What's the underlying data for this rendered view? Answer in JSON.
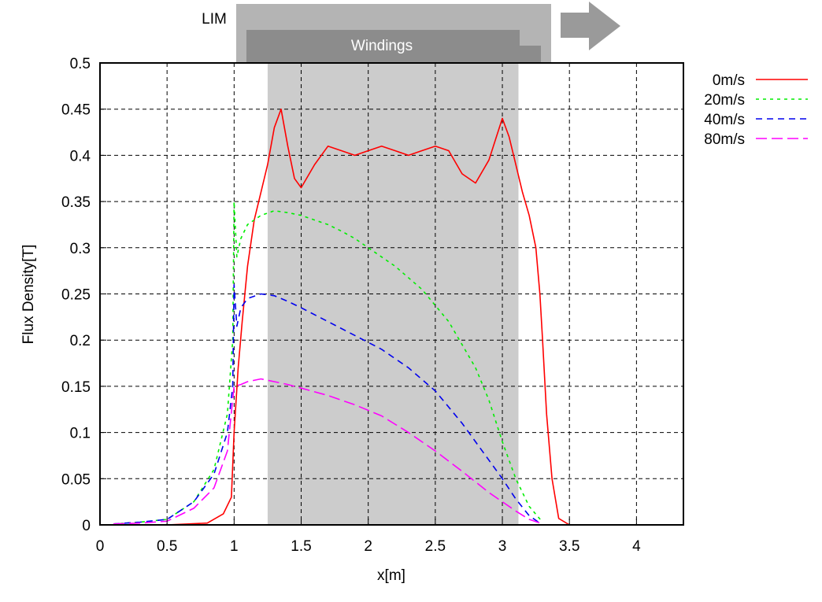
{
  "chart_data": {
    "type": "line",
    "title": "",
    "xlabel": "x[m]",
    "ylabel": "Flux Density[T]",
    "xlim": [
      0,
      4.35
    ],
    "ylim": [
      0,
      0.5
    ],
    "x_ticks": [
      "0",
      "0.5",
      "1",
      "1.5",
      "2",
      "2.5",
      "3",
      "3.5",
      "4"
    ],
    "y_ticks": [
      "0",
      "0.05",
      "0.1",
      "0.15",
      "0.2",
      "0.25",
      "0.3",
      "0.35",
      "0.4",
      "0.45",
      "0.5"
    ],
    "grid": true,
    "legend_position": "top-right outside",
    "shaded_region": {
      "x_start": 1.25,
      "x_end": 3.12,
      "color": "#cccccc"
    },
    "diagram": {
      "lim_label": "LIM",
      "windings_label": "Windings",
      "lim_color": "#b4b4b4",
      "windings_color": "#8c8c8c",
      "arrow_color": "#9a9a9a"
    },
    "series": [
      {
        "name": "0m/s",
        "color": "#ff0000",
        "dash": "solid",
        "x": [
          0.1,
          0.5,
          0.8,
          0.92,
          0.98,
          1.0,
          1.03,
          1.06,
          1.1,
          1.15,
          1.2,
          1.25,
          1.3,
          1.35,
          1.4,
          1.45,
          1.5,
          1.6,
          1.7,
          1.8,
          1.9,
          2.0,
          2.1,
          2.2,
          2.3,
          2.4,
          2.5,
          2.6,
          2.7,
          2.8,
          2.9,
          3.0,
          3.05,
          3.1,
          3.15,
          3.2,
          3.25,
          3.28,
          3.3,
          3.33,
          3.37,
          3.42,
          3.5
        ],
        "y": [
          0.0,
          0.0,
          0.002,
          0.012,
          0.03,
          0.1,
          0.17,
          0.22,
          0.28,
          0.33,
          0.36,
          0.39,
          0.43,
          0.45,
          0.41,
          0.375,
          0.365,
          0.39,
          0.41,
          0.405,
          0.4,
          0.405,
          0.41,
          0.405,
          0.4,
          0.405,
          0.41,
          0.405,
          0.38,
          0.37,
          0.395,
          0.44,
          0.42,
          0.39,
          0.36,
          0.335,
          0.3,
          0.25,
          0.2,
          0.12,
          0.05,
          0.007,
          0.0
        ]
      },
      {
        "name": "20m/s",
        "color": "#00ee00",
        "dash": "4,5",
        "x": [
          0.1,
          0.3,
          0.5,
          0.7,
          0.85,
          0.95,
          0.99,
          1.0,
          1.02,
          1.05,
          1.1,
          1.2,
          1.3,
          1.4,
          1.5,
          1.6,
          1.7,
          1.8,
          1.9,
          2.0,
          2.2,
          2.4,
          2.6,
          2.8,
          2.9,
          3.0,
          3.1,
          3.2,
          3.3
        ],
        "y": [
          0.001,
          0.003,
          0.006,
          0.025,
          0.06,
          0.12,
          0.2,
          0.35,
          0.29,
          0.31,
          0.325,
          0.335,
          0.34,
          0.338,
          0.335,
          0.33,
          0.325,
          0.318,
          0.31,
          0.3,
          0.28,
          0.255,
          0.22,
          0.17,
          0.135,
          0.09,
          0.05,
          0.02,
          0.003
        ]
      },
      {
        "name": "40m/s",
        "color": "#0000ee",
        "dash": "8,6",
        "x": [
          0.1,
          0.3,
          0.5,
          0.7,
          0.85,
          0.95,
          0.99,
          1.0,
          1.02,
          1.05,
          1.1,
          1.2,
          1.3,
          1.4,
          1.5,
          1.7,
          1.9,
          2.1,
          2.3,
          2.5,
          2.7,
          2.9,
          3.0,
          3.1,
          3.2,
          3.28
        ],
        "y": [
          0.001,
          0.003,
          0.006,
          0.025,
          0.055,
          0.1,
          0.15,
          0.26,
          0.215,
          0.235,
          0.245,
          0.25,
          0.248,
          0.242,
          0.235,
          0.22,
          0.205,
          0.19,
          0.17,
          0.145,
          0.11,
          0.07,
          0.05,
          0.028,
          0.01,
          0.002
        ]
      },
      {
        "name": "80m/s",
        "color": "#ff00ff",
        "dash": "14,6",
        "x": [
          0.1,
          0.3,
          0.5,
          0.7,
          0.85,
          0.95,
          1.0,
          1.05,
          1.1,
          1.2,
          1.3,
          1.4,
          1.5,
          1.7,
          1.9,
          2.1,
          2.3,
          2.5,
          2.7,
          2.9,
          3.0,
          3.1,
          3.2,
          3.3
        ],
        "y": [
          0.001,
          0.002,
          0.004,
          0.018,
          0.04,
          0.08,
          0.15,
          0.152,
          0.155,
          0.158,
          0.155,
          0.152,
          0.148,
          0.14,
          0.13,
          0.118,
          0.1,
          0.08,
          0.058,
          0.035,
          0.025,
          0.015,
          0.006,
          0.001
        ]
      }
    ]
  }
}
